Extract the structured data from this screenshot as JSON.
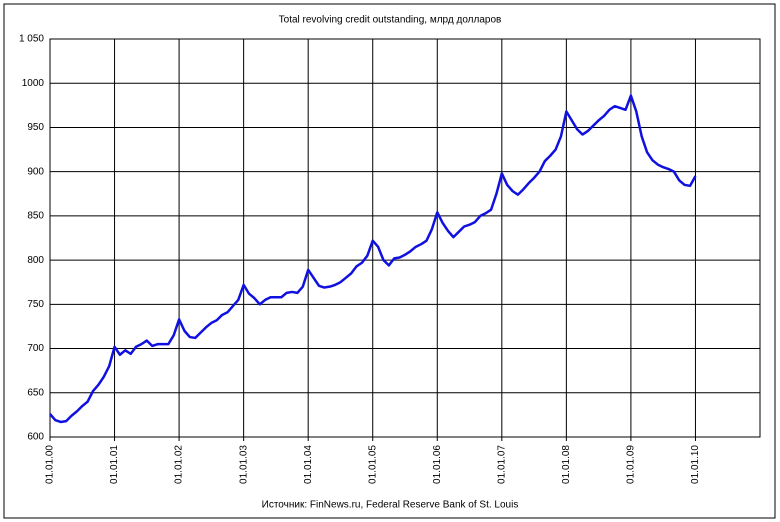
{
  "chart_data": {
    "type": "line",
    "title": "Total revolving credit outstanding, млрд долларов",
    "source": "Источник: FinNews.ru, Federal Reserve Bank of St. Louis",
    "categories": [
      "01.01.00",
      null,
      null,
      null,
      null,
      null,
      null,
      null,
      null,
      null,
      null,
      null,
      "01.01.01",
      null,
      null,
      null,
      null,
      null,
      null,
      null,
      null,
      null,
      null,
      null,
      "01.01.02",
      null,
      null,
      null,
      null,
      null,
      null,
      null,
      null,
      null,
      null,
      null,
      "01.01.03",
      null,
      null,
      null,
      null,
      null,
      null,
      null,
      null,
      null,
      null,
      null,
      "01.01.04",
      null,
      null,
      null,
      null,
      null,
      null,
      null,
      null,
      null,
      null,
      null,
      "01.01.05",
      null,
      null,
      null,
      null,
      null,
      null,
      null,
      null,
      null,
      null,
      null,
      "01.01.06",
      null,
      null,
      null,
      null,
      null,
      null,
      null,
      null,
      null,
      null,
      null,
      "01.01.07",
      null,
      null,
      null,
      null,
      null,
      null,
      null,
      null,
      null,
      null,
      null,
      "01.01.08",
      null,
      null,
      null,
      null,
      null,
      null,
      null,
      null,
      null,
      null,
      null,
      "01.01.09",
      null,
      null,
      null,
      null,
      null,
      null,
      null,
      null,
      null,
      null,
      null,
      "01.01.10",
      null,
      null,
      null,
      null,
      null,
      null,
      null,
      null,
      null,
      null,
      null
    ],
    "values": [
      626,
      619,
      617,
      618,
      624,
      629,
      635,
      640,
      652,
      659,
      668,
      680,
      702,
      693,
      698,
      694,
      702,
      705,
      709,
      703,
      705,
      705,
      705,
      715,
      733,
      720,
      713,
      712,
      718,
      724,
      729,
      732,
      738,
      741,
      748,
      755,
      772,
      762,
      757,
      750,
      755,
      758,
      758,
      758,
      763,
      764,
      763,
      770,
      789,
      780,
      771,
      769,
      770,
      772,
      775,
      780,
      785,
      793,
      797,
      805,
      822,
      815,
      800,
      794,
      802,
      803,
      806,
      810,
      815,
      818,
      822,
      835,
      854,
      842,
      833,
      826,
      832,
      838,
      840,
      843,
      850,
      853,
      857,
      875,
      898,
      885,
      878,
      874,
      880,
      887,
      893,
      900,
      912,
      918,
      925,
      940,
      968,
      958,
      948,
      942,
      946,
      952,
      958,
      963,
      970,
      974,
      972,
      970,
      986,
      968,
      940,
      922,
      913,
      908,
      905,
      903,
      900,
      890,
      885,
      884,
      895,
      null,
      null,
      null,
      null,
      null,
      null,
      null,
      null,
      null,
      null,
      null
    ],
    "color": "#1010e0",
    "ylim": [
      600,
      1050
    ],
    "yticks": [
      600,
      650,
      700,
      750,
      800,
      850,
      900,
      950,
      1000,
      {
        "value": 1050,
        "label": "1 050"
      }
    ],
    "grid": true
  }
}
